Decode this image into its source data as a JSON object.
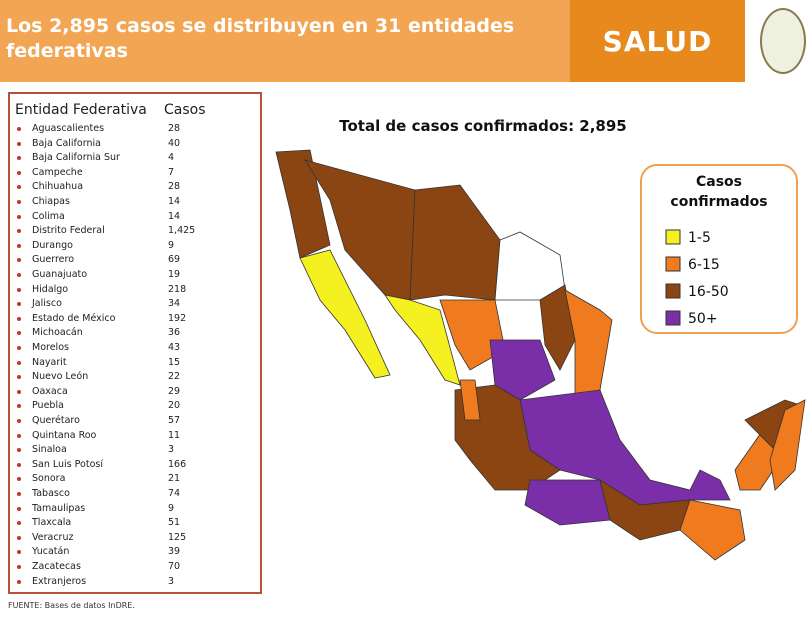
{
  "header": {
    "title": "Los 2,895 casos se distribuyen en 31 entidades federativas",
    "brand": "SALUD"
  },
  "table": {
    "header": [
      "Entidad Federativa",
      "Casos"
    ],
    "rows": [
      [
        "Aguascalientes",
        "28"
      ],
      [
        "Baja California",
        "40"
      ],
      [
        "Baja California Sur",
        "4"
      ],
      [
        "Campeche",
        "7"
      ],
      [
        "Chihuahua",
        "28"
      ],
      [
        "Chiapas",
        "14"
      ],
      [
        "Colima",
        "14"
      ],
      [
        "Distrito Federal",
        "1,425"
      ],
      [
        "Durango",
        "9"
      ],
      [
        "Guerrero",
        "69"
      ],
      [
        "Guanajuato",
        "19"
      ],
      [
        "Hidalgo",
        "218"
      ],
      [
        "Jalisco",
        "34"
      ],
      [
        "Estado de México",
        "192"
      ],
      [
        "Michoacán",
        "36"
      ],
      [
        "Morelos",
        "43"
      ],
      [
        "Nayarit",
        "15"
      ],
      [
        "Nuevo León",
        "22"
      ],
      [
        "Oaxaca",
        "29"
      ],
      [
        "Puebla",
        "20"
      ],
      [
        "Querétaro",
        "57"
      ],
      [
        "Quintana Roo",
        "11"
      ],
      [
        "Sinaloa",
        "3"
      ],
      [
        "San Luis Potosí",
        "166"
      ],
      [
        "Sonora",
        "21"
      ],
      [
        "Tabasco",
        "74"
      ],
      [
        "Tamaulipas",
        "9"
      ],
      [
        "Tlaxcala",
        "51"
      ],
      [
        "Veracruz",
        "125"
      ],
      [
        "Yucatán",
        "39"
      ],
      [
        "Zacatecas",
        "70"
      ],
      [
        "Extranjeros",
        "3"
      ]
    ]
  },
  "map": {
    "title": "Total de casos confirmados: 2,895",
    "legend": {
      "title": "Casos confirmados",
      "items": [
        {
          "label": "1-5",
          "color": "#f5f020"
        },
        {
          "label": "6-15",
          "color": "#f07a1e"
        },
        {
          "label": "16-50",
          "color": "#8b4513"
        },
        {
          "label": "50+",
          "color": "#7a2fa8"
        }
      ]
    }
  },
  "source": "FUENTE: Bases de datos InDRE."
}
